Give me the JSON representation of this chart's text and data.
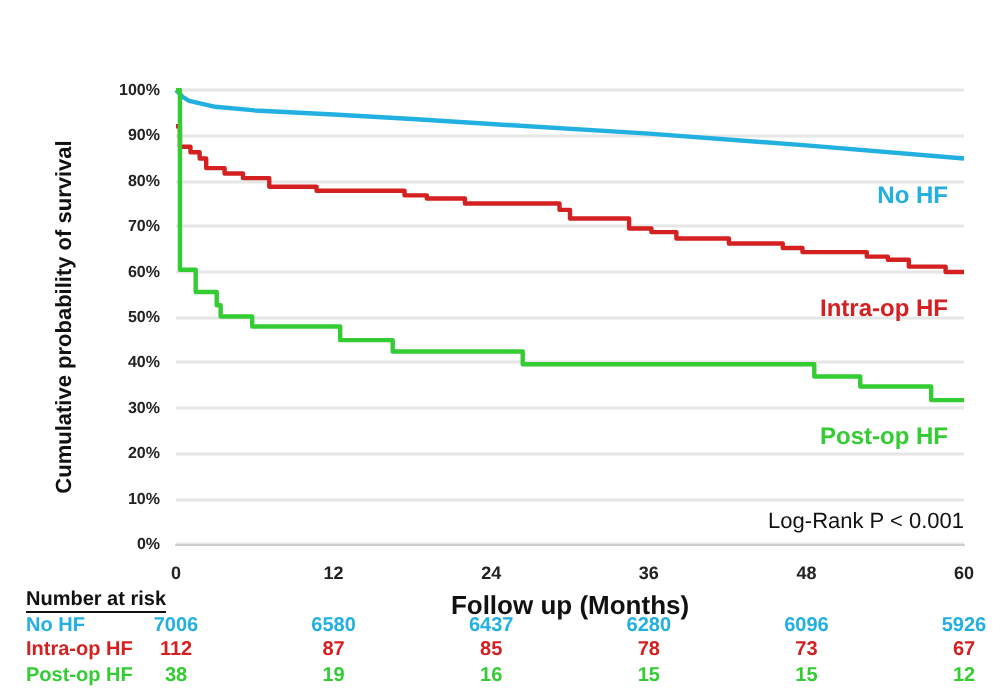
{
  "chart_data": {
    "type": "step",
    "xlabel": "Follow up (Months)",
    "ylabel": "Cumulative probability of survival",
    "xlim": [
      0,
      60
    ],
    "xticks": [
      0,
      12,
      24,
      36,
      48,
      60
    ],
    "ylim": [
      0,
      100
    ],
    "yticks": [
      {
        "value": 0,
        "label": "0%"
      },
      {
        "value": 10,
        "label": "10%"
      },
      {
        "value": 20,
        "label": "20%"
      },
      {
        "value": 30,
        "label": "30%"
      },
      {
        "value": 40,
        "label": "40%"
      },
      {
        "value": 50,
        "label": "50%"
      },
      {
        "value": 60,
        "label": "60%"
      },
      {
        "value": 70,
        "label": "70%"
      },
      {
        "value": 80,
        "label": "80%"
      },
      {
        "value": 90,
        "label": "90%"
      },
      {
        "value": 100,
        "label": "100%"
      }
    ],
    "grid": "y",
    "series": [
      {
        "name": "No HF",
        "type": "line",
        "color": "#22b0e0",
        "x": [
          0,
          0.5,
          1,
          3,
          6,
          12,
          18,
          24,
          36,
          48,
          60
        ],
        "values": [
          100,
          98.5,
          97.6,
          96.3,
          95.5,
          94.6,
          93.6,
          92.5,
          90.4,
          87.8,
          84.9
        ]
      },
      {
        "name": "Intra-op HF",
        "color": "#d42020",
        "x": [
          0,
          0.3,
          1.1,
          1.8,
          2.3,
          3.7,
          5.1,
          7.1,
          10.7,
          17.4,
          19.1,
          22.0,
          29.2,
          30.0,
          34.5,
          36.2,
          38.1,
          42.1,
          46.2,
          47.7,
          52.6,
          54.2,
          55.8,
          58.6,
          60
        ],
        "values": [
          92,
          87.5,
          86.3,
          84.9,
          82.8,
          81.6,
          80.6,
          78.7,
          77.8,
          76.8,
          76.1,
          75.0,
          73.6,
          71.7,
          69.5,
          68.7,
          67.3,
          66.2,
          65.2,
          64.3,
          63.3,
          62.6,
          61.1,
          59.9,
          59.9
        ]
      },
      {
        "name": "Post-op HF",
        "color": "#33cc33",
        "x": [
          0,
          0.3,
          1.5,
          3.1,
          3.4,
          5.8,
          12.5,
          16.5,
          26.4,
          48.6,
          52.1,
          57.5,
          60
        ],
        "values": [
          100,
          60.4,
          55.5,
          52.6,
          50.1,
          47.9,
          44.9,
          42.4,
          39.6,
          36.9,
          34.7,
          31.7,
          31.7
        ]
      }
    ],
    "annotations": [
      "Log-Rank P < 0.001",
      "Number at risk",
      "No HF",
      "7006",
      "6580",
      "6437",
      "6280",
      "6096",
      "5926",
      "Intra-op HF",
      "112",
      "87",
      "85",
      "78",
      "73",
      "67",
      "Post-op HF",
      "38",
      "19",
      "16",
      "15",
      "15",
      "12"
    ]
  }
}
